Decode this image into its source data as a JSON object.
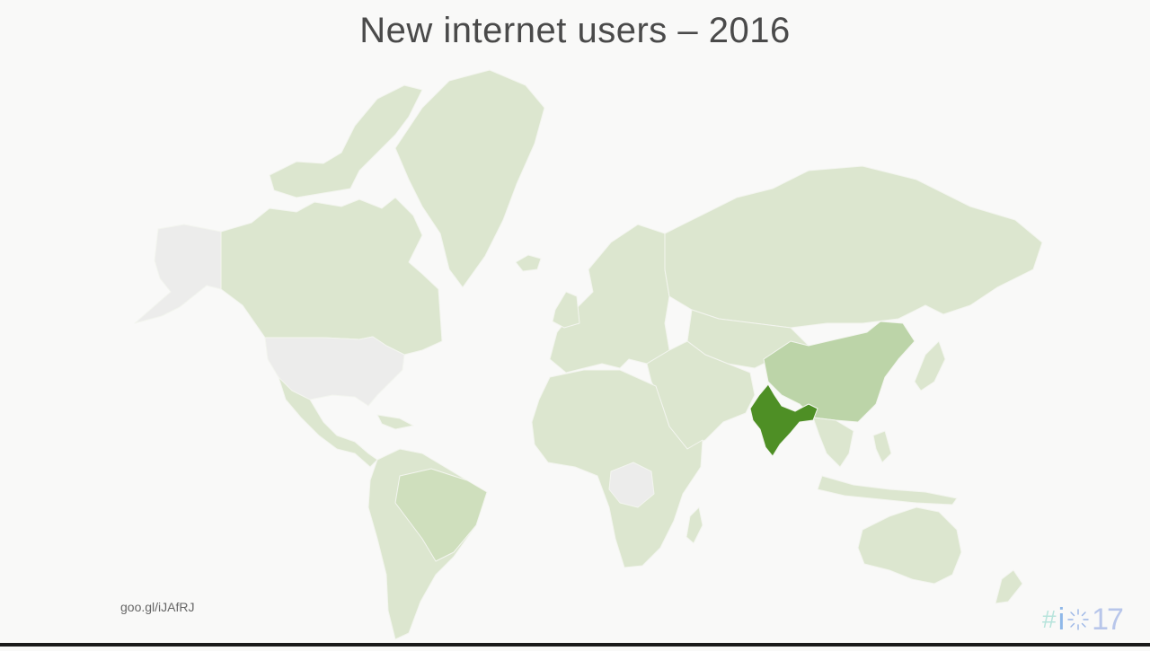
{
  "title": "New internet users – 2016",
  "source_link": "goo.gl/iJAfRJ",
  "logo": {
    "hash": "#",
    "text": "17",
    "i": "i"
  },
  "colors": {
    "background": "#f9f9f8",
    "land_light": "#dce6cf",
    "land_medium": "#bcd4a8",
    "land_no_data": "#ececeb",
    "land_highlight": "#4e8f25",
    "border": "#f3f5ef"
  },
  "map_data": {
    "metric": "new internet users",
    "year": 2016,
    "regions": [
      {
        "name": "India",
        "level": "highest"
      },
      {
        "name": "China",
        "level": "high"
      },
      {
        "name": "Brazil",
        "level": "medium"
      },
      {
        "name": "United States",
        "level": "no-data"
      },
      {
        "name": "Alaska",
        "level": "no-data"
      },
      {
        "name": "DR Congo",
        "level": "no-data"
      },
      {
        "name": "Canada",
        "level": "low"
      },
      {
        "name": "Greenland",
        "level": "low"
      },
      {
        "name": "Russia",
        "level": "low"
      },
      {
        "name": "Europe",
        "level": "low"
      },
      {
        "name": "Africa",
        "level": "low"
      },
      {
        "name": "South America",
        "level": "low"
      },
      {
        "name": "Australia",
        "level": "low"
      },
      {
        "name": "Southeast Asia",
        "level": "low"
      },
      {
        "name": "Middle East",
        "level": "low"
      }
    ]
  }
}
